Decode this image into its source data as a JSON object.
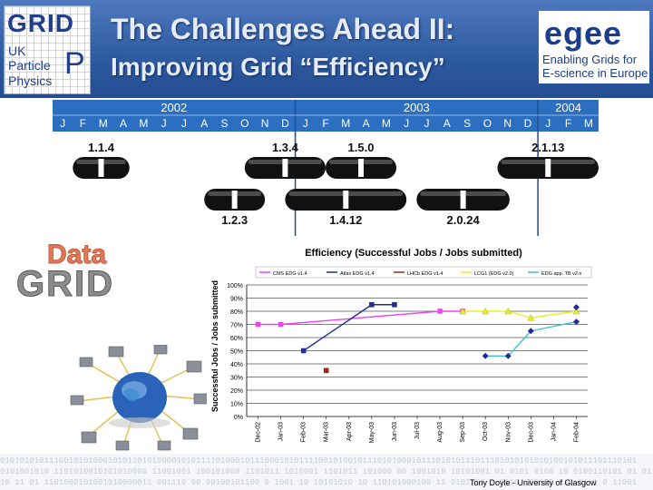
{
  "slide": {
    "title_line1": "The Challenges Ahead II:",
    "title_line2": "Improving Grid “Efficiency”",
    "footer_credit": "Tony Doyle - University of Glasgow",
    "binary_strip": "0101010101110010101000101011010100001010111101000101110001010111100101001011101010001011101010111011101010101010100101011101110101",
    "binary_strip_2": "0101001010 1101010010101010000 11001001 100101000 1101011 1010001 1101011 101000 00 1001010 10101001 01 0101 0100 10 0100110101 01 01",
    "binary_strip_3": "10 11 01 1101000101001010000011 001110 00 00100101100 0 1001 10 10101010 10 110101000100 11 0101101 1 0110 100100 010 01 1 0 11001"
  },
  "logos": {
    "gridpp": {
      "line1": "GRID",
      "line2": "UK",
      "line3": "Particle",
      "line4": "Physics",
      "big_p": "P"
    },
    "egee": {
      "wordmark": "egee",
      "tagline_1": "Enabling Grids for",
      "tagline_2": "E-science in Europe"
    },
    "datagrid": {
      "top": "Data",
      "bottom": "GRID"
    }
  },
  "timeline": {
    "years": [
      {
        "label": "2002",
        "months": [
          "J",
          "F",
          "M",
          "A",
          "M",
          "J",
          "J",
          "A",
          "S",
          "O",
          "N",
          "D"
        ]
      },
      {
        "label": "2003",
        "months": [
          "J",
          "F",
          "M",
          "A",
          "M",
          "J",
          "J",
          "A",
          "S",
          "O",
          "N",
          "D"
        ]
      },
      {
        "label": "2004",
        "months": [
          "J",
          "F",
          "M"
        ]
      }
    ],
    "releases_top": [
      {
        "label": "1.1.4",
        "start": 1,
        "end": 3.8
      },
      {
        "label": "1.3.4",
        "start": 9.5,
        "end": 13.5
      },
      {
        "label": "1.5.0",
        "start": 13.5,
        "end": 17
      },
      {
        "label": "2.1.13",
        "start": 22,
        "end": 27
      }
    ],
    "releases_bottom": [
      {
        "label": "1.2.3",
        "start": 7.5,
        "end": 10.5
      },
      {
        "label": "1.4.12",
        "start": 11.5,
        "end": 17.5
      },
      {
        "label": "2.0.24",
        "start": 18,
        "end": 22.6
      }
    ]
  },
  "chart_data": {
    "type": "line",
    "title": "Efficiency (Successful Jobs / Jobs submitted)",
    "ylabel": "Successful Jobs / Jobs submitted",
    "xlabel": "",
    "ylim": [
      0,
      100
    ],
    "y_ticks": [
      "0%",
      "10%",
      "20%",
      "30%",
      "40%",
      "50%",
      "60%",
      "70%",
      "80%",
      "90%",
      "100%"
    ],
    "categories": [
      "Dec-02",
      "Jan-03",
      "Feb-03",
      "Mar-03",
      "Apr-03",
      "May-03",
      "Jun-03",
      "Jul-03",
      "Aug-03",
      "Sep-03",
      "Oct-03",
      "Nov-03",
      "Dec-03",
      "Jan-04",
      "Feb-04"
    ],
    "grid": true,
    "legend_position": "top",
    "series": [
      {
        "name": "CMS EDG v1.4",
        "color": "#ee44ee",
        "marker": "square",
        "values": [
          70,
          70,
          null,
          null,
          null,
          null,
          null,
          null,
          80,
          80,
          null,
          null,
          null,
          null,
          null
        ]
      },
      {
        "name": "Atlas EDG v1.4",
        "color": "#1f2f8f",
        "marker": "square",
        "values": [
          null,
          null,
          50,
          null,
          null,
          85,
          85,
          null,
          null,
          null,
          null,
          null,
          null,
          null,
          null
        ]
      },
      {
        "name": "LHCb EDG v1.4",
        "color": "#9b2a1f",
        "marker": "square",
        "values": [
          null,
          null,
          null,
          35,
          null,
          null,
          null,
          null,
          null,
          null,
          null,
          null,
          null,
          null,
          null
        ]
      },
      {
        "name": "LCG1 (EDG v2.0)",
        "color": "#eeee22",
        "marker": "triangle",
        "values": [
          null,
          null,
          null,
          null,
          null,
          null,
          null,
          null,
          null,
          80,
          80,
          80,
          75,
          null,
          80
        ]
      },
      {
        "name": "EDG app. TB v2.x",
        "color": "#3fbfdd",
        "marker": "diamond",
        "values": [
          null,
          null,
          null,
          null,
          null,
          null,
          null,
          null,
          null,
          null,
          46,
          46,
          65,
          null,
          72
        ]
      },
      {
        "name": "",
        "color": "#1f2f8f",
        "marker": "diamond",
        "values": [
          null,
          null,
          null,
          null,
          null,
          null,
          null,
          null,
          null,
          null,
          null,
          null,
          null,
          null,
          83
        ]
      }
    ]
  }
}
